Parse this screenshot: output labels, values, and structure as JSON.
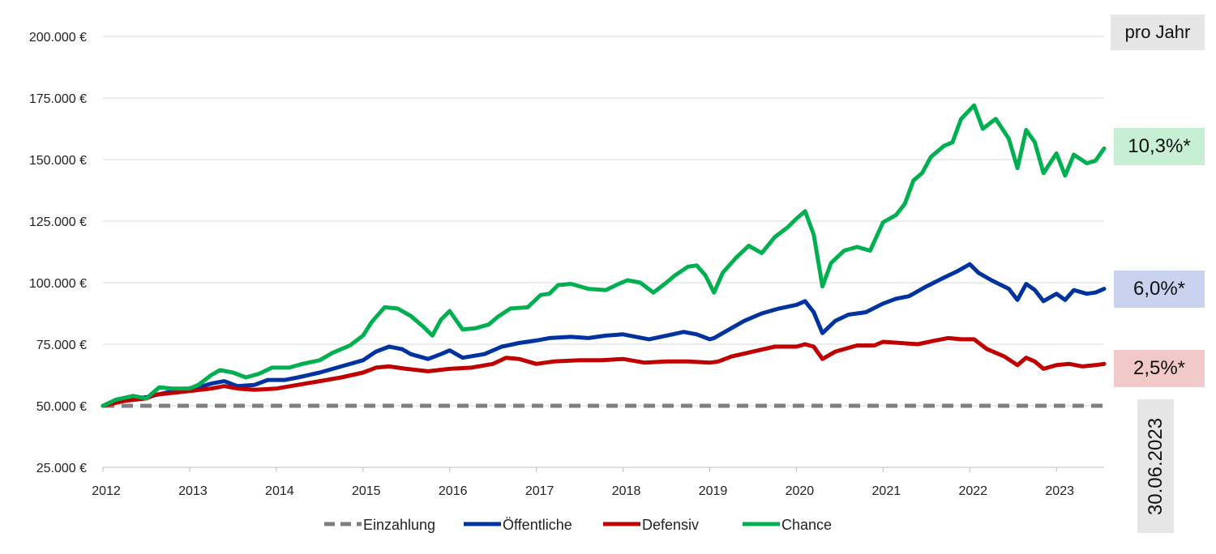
{
  "chart_data": {
    "type": "line",
    "title": "",
    "xlabel": "",
    "ylabel": "",
    "x_ticks": [
      "2012",
      "2013",
      "2014",
      "2015",
      "2016",
      "2017",
      "2018",
      "2019",
      "2020",
      "2021",
      "2022",
      "2023"
    ],
    "y_ticks": [
      "25.000 €",
      "50.000 €",
      "75.000 €",
      "100.000 €",
      "125.000 €",
      "150.000 €",
      "175.000 €",
      "200.000 €"
    ],
    "xlim": [
      2012.0,
      2023.55
    ],
    "ylim": [
      25000,
      200000
    ],
    "grid": "horizontal",
    "legend_position": "bottom",
    "series": [
      {
        "name": "Einzahlung",
        "color": "#7f7f7f",
        "style": "dashed",
        "points": [
          [
            2012.0,
            50000
          ],
          [
            2023.55,
            50000
          ]
        ]
      },
      {
        "name": "Öffentliche",
        "color": "#0033a0",
        "style": "solid",
        "points": [
          [
            2012.0,
            50000
          ],
          [
            2012.25,
            52500
          ],
          [
            2012.5,
            53500
          ],
          [
            2012.75,
            55500
          ],
          [
            2013.0,
            56500
          ],
          [
            2013.25,
            59000
          ],
          [
            2013.4,
            60000
          ],
          [
            2013.55,
            58000
          ],
          [
            2013.75,
            58500
          ],
          [
            2013.9,
            60500
          ],
          [
            2014.1,
            60500
          ],
          [
            2014.25,
            61500
          ],
          [
            2014.5,
            63500
          ],
          [
            2014.75,
            66000
          ],
          [
            2015.0,
            68500
          ],
          [
            2015.15,
            72000
          ],
          [
            2015.3,
            74000
          ],
          [
            2015.45,
            73000
          ],
          [
            2015.55,
            71000
          ],
          [
            2015.75,
            69000
          ],
          [
            2015.9,
            71000
          ],
          [
            2016.0,
            72500
          ],
          [
            2016.15,
            69500
          ],
          [
            2016.4,
            71000
          ],
          [
            2016.6,
            74000
          ],
          [
            2016.8,
            75500
          ],
          [
            2017.0,
            76500
          ],
          [
            2017.15,
            77500
          ],
          [
            2017.4,
            78000
          ],
          [
            2017.6,
            77500
          ],
          [
            2017.8,
            78500
          ],
          [
            2018.0,
            79000
          ],
          [
            2018.15,
            78000
          ],
          [
            2018.3,
            77000
          ],
          [
            2018.5,
            78500
          ],
          [
            2018.7,
            80000
          ],
          [
            2018.85,
            79000
          ],
          [
            2019.0,
            77000
          ],
          [
            2019.05,
            77500
          ],
          [
            2019.25,
            81500
          ],
          [
            2019.4,
            84500
          ],
          [
            2019.6,
            87500
          ],
          [
            2019.8,
            89500
          ],
          [
            2020.0,
            91000
          ],
          [
            2020.1,
            92500
          ],
          [
            2020.2,
            88000
          ],
          [
            2020.3,
            79500
          ],
          [
            2020.45,
            84500
          ],
          [
            2020.6,
            87000
          ],
          [
            2020.8,
            88000
          ],
          [
            2021.0,
            91500
          ],
          [
            2021.15,
            93500
          ],
          [
            2021.3,
            94500
          ],
          [
            2021.5,
            98500
          ],
          [
            2021.7,
            102000
          ],
          [
            2021.85,
            104500
          ],
          [
            2022.0,
            107500
          ],
          [
            2022.1,
            104000
          ],
          [
            2022.25,
            101000
          ],
          [
            2022.45,
            97500
          ],
          [
            2022.55,
            93000
          ],
          [
            2022.65,
            99500
          ],
          [
            2022.75,
            97000
          ],
          [
            2022.85,
            92500
          ],
          [
            2023.0,
            95500
          ],
          [
            2023.1,
            93000
          ],
          [
            2023.2,
            97000
          ],
          [
            2023.35,
            95500
          ],
          [
            2023.45,
            96000
          ],
          [
            2023.55,
            97500
          ]
        ]
      },
      {
        "name": "Defensiv",
        "color": "#c00000",
        "style": "solid",
        "points": [
          [
            2012.0,
            50000
          ],
          [
            2012.25,
            52000
          ],
          [
            2012.5,
            53000
          ],
          [
            2012.6,
            54500
          ],
          [
            2012.75,
            55000
          ],
          [
            2013.0,
            56000
          ],
          [
            2013.25,
            57000
          ],
          [
            2013.4,
            58000
          ],
          [
            2013.55,
            57000
          ],
          [
            2013.75,
            56500
          ],
          [
            2014.0,
            57000
          ],
          [
            2014.25,
            58500
          ],
          [
            2014.5,
            60000
          ],
          [
            2014.75,
            61500
          ],
          [
            2015.0,
            63500
          ],
          [
            2015.15,
            65500
          ],
          [
            2015.3,
            66000
          ],
          [
            2015.5,
            65000
          ],
          [
            2015.75,
            64000
          ],
          [
            2016.0,
            65000
          ],
          [
            2016.25,
            65500
          ],
          [
            2016.5,
            67000
          ],
          [
            2016.65,
            69500
          ],
          [
            2016.8,
            69000
          ],
          [
            2017.0,
            67000
          ],
          [
            2017.2,
            68000
          ],
          [
            2017.5,
            68500
          ],
          [
            2017.75,
            68500
          ],
          [
            2018.0,
            69000
          ],
          [
            2018.25,
            67500
          ],
          [
            2018.5,
            68000
          ],
          [
            2018.75,
            68000
          ],
          [
            2019.0,
            67500
          ],
          [
            2019.1,
            68000
          ],
          [
            2019.25,
            70000
          ],
          [
            2019.5,
            72000
          ],
          [
            2019.75,
            74000
          ],
          [
            2020.0,
            74000
          ],
          [
            2020.1,
            75000
          ],
          [
            2020.2,
            74000
          ],
          [
            2020.3,
            69000
          ],
          [
            2020.45,
            72000
          ],
          [
            2020.7,
            74500
          ],
          [
            2020.9,
            74500
          ],
          [
            2021.0,
            76000
          ],
          [
            2021.2,
            75500
          ],
          [
            2021.4,
            75000
          ],
          [
            2021.6,
            76500
          ],
          [
            2021.75,
            77500
          ],
          [
            2021.9,
            77000
          ],
          [
            2022.05,
            77000
          ],
          [
            2022.2,
            73000
          ],
          [
            2022.4,
            70000
          ],
          [
            2022.55,
            66500
          ],
          [
            2022.65,
            69500
          ],
          [
            2022.75,
            68000
          ],
          [
            2022.85,
            65000
          ],
          [
            2023.0,
            66500
          ],
          [
            2023.15,
            67000
          ],
          [
            2023.3,
            66000
          ],
          [
            2023.45,
            66500
          ],
          [
            2023.55,
            67000
          ]
        ]
      },
      {
        "name": "Chance",
        "color": "#00b050",
        "style": "solid",
        "points": [
          [
            2012.0,
            50000
          ],
          [
            2012.15,
            52500
          ],
          [
            2012.35,
            54000
          ],
          [
            2012.5,
            53000
          ],
          [
            2012.65,
            57500
          ],
          [
            2012.8,
            57000
          ],
          [
            2013.0,
            57000
          ],
          [
            2013.1,
            58500
          ],
          [
            2013.25,
            62500
          ],
          [
            2013.35,
            64500
          ],
          [
            2013.5,
            63500
          ],
          [
            2013.65,
            61500
          ],
          [
            2013.8,
            63000
          ],
          [
            2013.95,
            65500
          ],
          [
            2014.15,
            65500
          ],
          [
            2014.3,
            67000
          ],
          [
            2014.5,
            68500
          ],
          [
            2014.65,
            71500
          ],
          [
            2014.85,
            74500
          ],
          [
            2015.0,
            78500
          ],
          [
            2015.1,
            84000
          ],
          [
            2015.25,
            90000
          ],
          [
            2015.4,
            89500
          ],
          [
            2015.55,
            86500
          ],
          [
            2015.7,
            82000
          ],
          [
            2015.8,
            78500
          ],
          [
            2015.9,
            85000
          ],
          [
            2016.0,
            88500
          ],
          [
            2016.15,
            81000
          ],
          [
            2016.3,
            81500
          ],
          [
            2016.45,
            83000
          ],
          [
            2016.55,
            86000
          ],
          [
            2016.7,
            89500
          ],
          [
            2016.9,
            90000
          ],
          [
            2017.05,
            95000
          ],
          [
            2017.15,
            95500
          ],
          [
            2017.25,
            99000
          ],
          [
            2017.4,
            99500
          ],
          [
            2017.6,
            97500
          ],
          [
            2017.8,
            97000
          ],
          [
            2017.95,
            99500
          ],
          [
            2018.05,
            101000
          ],
          [
            2018.2,
            100000
          ],
          [
            2018.35,
            96000
          ],
          [
            2018.5,
            100000
          ],
          [
            2018.6,
            103000
          ],
          [
            2018.75,
            106500
          ],
          [
            2018.85,
            107000
          ],
          [
            2018.95,
            103000
          ],
          [
            2019.05,
            96000
          ],
          [
            2019.15,
            104000
          ],
          [
            2019.3,
            110000
          ],
          [
            2019.45,
            115000
          ],
          [
            2019.6,
            112000
          ],
          [
            2019.75,
            118500
          ],
          [
            2019.9,
            122500
          ],
          [
            2020.0,
            126000
          ],
          [
            2020.1,
            129000
          ],
          [
            2020.2,
            119500
          ],
          [
            2020.3,
            98500
          ],
          [
            2020.4,
            108000
          ],
          [
            2020.55,
            113000
          ],
          [
            2020.7,
            114500
          ],
          [
            2020.85,
            113000
          ],
          [
            2021.0,
            124500
          ],
          [
            2021.15,
            127500
          ],
          [
            2021.25,
            132000
          ],
          [
            2021.35,
            141500
          ],
          [
            2021.45,
            144500
          ],
          [
            2021.55,
            151000
          ],
          [
            2021.7,
            155500
          ],
          [
            2021.8,
            157000
          ],
          [
            2021.9,
            166500
          ],
          [
            2022.05,
            172000
          ],
          [
            2022.15,
            162500
          ],
          [
            2022.3,
            166500
          ],
          [
            2022.45,
            158500
          ],
          [
            2022.55,
            146500
          ],
          [
            2022.65,
            162000
          ],
          [
            2022.75,
            157000
          ],
          [
            2022.85,
            144500
          ],
          [
            2023.0,
            152500
          ],
          [
            2023.1,
            143500
          ],
          [
            2023.2,
            152000
          ],
          [
            2023.35,
            148500
          ],
          [
            2023.45,
            149500
          ],
          [
            2023.55,
            154500
          ]
        ]
      }
    ]
  },
  "annotations": {
    "pro_jahr": "pro Jahr",
    "rate_chance": "10,3%*",
    "rate_oeffentliche": "6,0%*",
    "rate_defensiv": "2,5%*",
    "date": "30.06.2023",
    "color_chance_bg": "#c6efd4",
    "color_oeffentliche_bg": "#c9d2ee",
    "color_defensiv_bg": "#f2c9c9"
  }
}
